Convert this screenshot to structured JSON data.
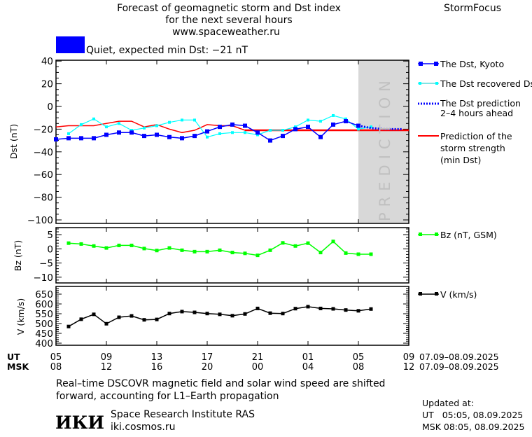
{
  "header": {
    "title_line1": "Forecast of geomagnetic storm and Dst index",
    "title_line2": "for the next several hours",
    "website": "www.spaceweather.ru",
    "brand": "StormFocus",
    "status_color": "#0000ff",
    "status_text": "Quiet, expected min Dst: −21 nT"
  },
  "prediction_label": "PREDICTION",
  "legend": {
    "dst_kyoto": "The Dst, Kyoto",
    "dst_recovered": "The Dst recovered Dst",
    "dst_prediction_1": "The Dst prediction",
    "dst_prediction_2": "2–4 hours ahead",
    "storm_1": "Prediction of the",
    "storm_2": "storm strength",
    "storm_3": "(min Dst)",
    "bz": "Bz (nT, GSM)",
    "v": "V (km/s)"
  },
  "x_axis": {
    "ut_label": "UT",
    "msk_label": "MSK",
    "ut_ticks": [
      "05",
      "09",
      "13",
      "17",
      "21",
      "01",
      "05",
      "09"
    ],
    "msk_ticks": [
      "08",
      "12",
      "16",
      "20",
      "00",
      "04",
      "08",
      "12"
    ],
    "ut_range": "07.09–08.09.2025",
    "msk_range": "07.09–08.09.2025"
  },
  "footer": {
    "note_line1": "Real–time DSCOVR magnetic field and solar wind speed are shifted",
    "note_line2": "forward, accounting for L1–Earth propagation",
    "logo_text": "ИКИ",
    "institute": "Space Research Institute RAS",
    "institute_url": "iki.cosmos.ru",
    "updated_label": "Updated at:",
    "updated_ut": "UT   05:05, 08.09.2025",
    "updated_msk": "MSK 08:05, 08.09.2025"
  },
  "chart_data": [
    {
      "type": "line",
      "panel": "dst",
      "ylabel": "Dst (nT)",
      "ylim": [
        -100,
        40
      ],
      "yticks": [
        40,
        20,
        0,
        -20,
        -40,
        -60,
        -80,
        -100
      ],
      "xlim": [
        "07.09 05:00",
        "08.09 09:00"
      ],
      "prediction_region": [
        "08.09 05:00",
        "08.09 09:00"
      ],
      "times_ut": [
        "07.09 05:00",
        "07.09 06:00",
        "07.09 07:00",
        "07.09 08:00",
        "07.09 09:00",
        "07.09 10:00",
        "07.09 11:00",
        "07.09 12:00",
        "07.09 13:00",
        "07.09 14:00",
        "07.09 15:00",
        "07.09 16:00",
        "07.09 17:00",
        "07.09 18:00",
        "07.09 19:00",
        "07.09 20:00",
        "07.09 21:00",
        "07.09 22:00",
        "07.09 23:00",
        "08.09 00:00",
        "08.09 01:00",
        "08.09 02:00",
        "08.09 03:00",
        "08.09 04:00",
        "08.09 05:00",
        "08.09 06:00"
      ],
      "series": [
        {
          "name": "The Dst, Kyoto",
          "color": "#0000ff",
          "values": [
            -29,
            -28,
            -28,
            -28,
            -25,
            -23,
            -23,
            -26,
            -25,
            -27,
            -28,
            -26,
            -22,
            -18,
            -16,
            -17,
            -23,
            -30,
            -26,
            -20,
            -18,
            -27,
            -16,
            -13,
            -17,
            null
          ]
        },
        {
          "name": "The Dst recovered Dst",
          "color": "#00ffff",
          "values": [
            null,
            -24,
            -16,
            -11,
            -18,
            -15,
            -21,
            -19,
            -17,
            -14,
            -12,
            -12,
            -27,
            -24,
            -23,
            -23,
            -25,
            -21,
            -21,
            -18,
            -12,
            -13,
            -8,
            -11,
            -20,
            -18
          ]
        },
        {
          "name": "The Dst prediction 2-4 hours ahead",
          "color": "#0000ff",
          "style": "dotted",
          "points": [
            [
              "08.09 05:00",
              -17
            ],
            [
              "08.09 06:00",
              -19
            ],
            [
              "08.09 07:00",
              -20
            ],
            [
              "08.09 08:00",
              -20
            ],
            [
              "08.09 08:30",
              -20
            ]
          ]
        },
        {
          "name": "Prediction of the storm strength (min Dst)",
          "color": "#ff0000",
          "points": [
            [
              "07.09 05:00",
              -18
            ],
            [
              "07.09 06:00",
              -17
            ],
            [
              "07.09 08:00",
              -17
            ],
            [
              "07.09 09:00",
              -15
            ],
            [
              "07.09 10:00",
              -13
            ],
            [
              "07.09 11:00",
              -13
            ],
            [
              "07.09 12:00",
              -18
            ],
            [
              "07.09 13:00",
              -16
            ],
            [
              "07.09 14:00",
              -20
            ],
            [
              "07.09 15:00",
              -23
            ],
            [
              "07.09 16:00",
              -21
            ],
            [
              "07.09 17:00",
              -16
            ],
            [
              "07.09 18:00",
              -17
            ],
            [
              "07.09 19:00",
              -17
            ],
            [
              "07.09 20:00",
              -21
            ],
            [
              "08.09 09:00",
              -21
            ]
          ]
        }
      ]
    },
    {
      "type": "line",
      "panel": "bz",
      "ylabel": "Bz (nT)",
      "ylim": [
        -12,
        7.5
      ],
      "yticks": [
        5,
        0,
        -5,
        -10
      ],
      "series": [
        {
          "name": "Bz (nT, GSM)",
          "color": "#00ff00",
          "values": [
            null,
            2,
            1.7,
            1,
            0.3,
            1.2,
            1.2,
            0.1,
            -0.6,
            0.3,
            -0.5,
            -1,
            -1,
            -0.5,
            -1.3,
            -1.6,
            -2.3,
            -0.5,
            2.1,
            1,
            2,
            -1.3,
            2.6,
            -1.5,
            -1.9,
            -1.9
          ]
        }
      ]
    },
    {
      "type": "line",
      "panel": "v",
      "ylabel": "V (km/s)",
      "ylim": [
        385,
        690
      ],
      "yticks": [
        650,
        600,
        550,
        500,
        450,
        400
      ],
      "series": [
        {
          "name": "V (km/s)",
          "color": "#000000",
          "values": [
            null,
            485,
            522,
            547,
            499,
            532,
            539,
            519,
            521,
            551,
            561,
            557,
            551,
            547,
            540,
            549,
            577,
            553,
            551,
            576,
            586,
            577,
            575,
            569,
            565,
            574
          ]
        }
      ]
    }
  ]
}
